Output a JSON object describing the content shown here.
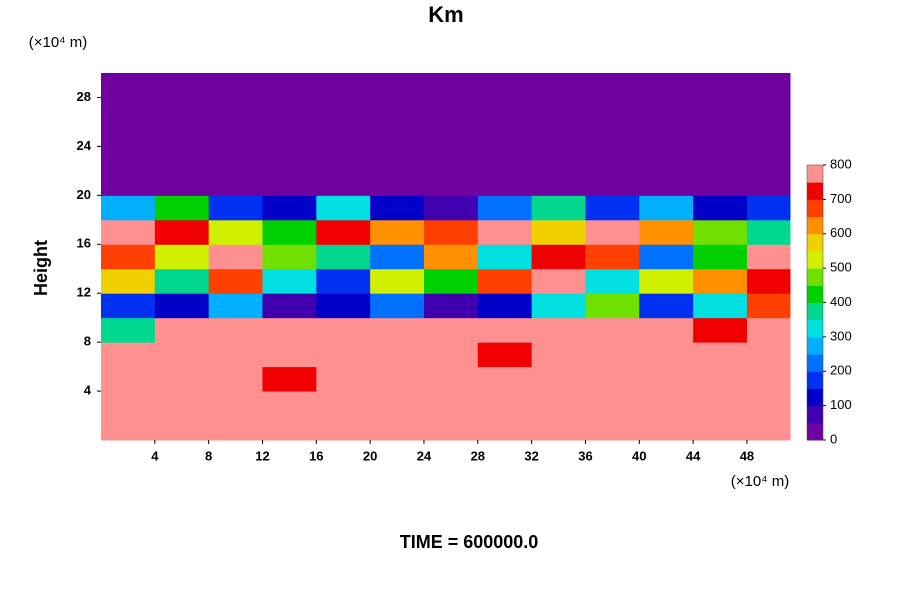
{
  "chart_data": {
    "type": "contour",
    "title": "Km",
    "y_label": "Height",
    "x_unit": "(×10⁴ m)",
    "y_unit": "(×10⁴ m)",
    "footer": "TIME = 600000.0",
    "xlim": [
      0,
      51.2
    ],
    "ylim": [
      0,
      30
    ],
    "xticks": [
      4,
      8,
      12,
      16,
      20,
      24,
      28,
      32,
      36,
      40,
      44,
      48
    ],
    "yticks": [
      4,
      8,
      12,
      16,
      20,
      24,
      28
    ],
    "xbins": [
      0,
      4,
      8,
      12,
      16,
      20,
      24,
      28,
      32,
      36,
      40,
      44,
      48,
      51.2
    ],
    "ybins": [
      0,
      2,
      4,
      6,
      8,
      10,
      12,
      14,
      16,
      18,
      20,
      22,
      24,
      26,
      28,
      30
    ],
    "z": [
      [
        800,
        800,
        800,
        800,
        800,
        800,
        800,
        800,
        800,
        800,
        800,
        800,
        800
      ],
      [
        800,
        800,
        800,
        800,
        800,
        750,
        800,
        800,
        800,
        800,
        800,
        800,
        800
      ],
      [
        800,
        800,
        750,
        700,
        800,
        750,
        800,
        750,
        800,
        800,
        800,
        800,
        800
      ],
      [
        800,
        800,
        800,
        800,
        800,
        800,
        800,
        700,
        800,
        800,
        800,
        800,
        800
      ],
      [
        350,
        800,
        800,
        800,
        800,
        800,
        800,
        800,
        800,
        800,
        750,
        700,
        800
      ],
      [
        150,
        100,
        250,
        50,
        100,
        200,
        50,
        100,
        300,
        450,
        150,
        300,
        650
      ],
      [
        550,
        350,
        650,
        300,
        150,
        500,
        400,
        650,
        750,
        300,
        500,
        600,
        700
      ],
      [
        650,
        500,
        750,
        450,
        350,
        200,
        600,
        300,
        700,
        650,
        200,
        400,
        750
      ],
      [
        750,
        700,
        500,
        400,
        700,
        600,
        650,
        750,
        550,
        800,
        600,
        450,
        350
      ],
      [
        250,
        400,
        150,
        100,
        300,
        100,
        50,
        200,
        350,
        150,
        250,
        100,
        150
      ],
      [
        0,
        0,
        0,
        0,
        0,
        0,
        0,
        0,
        0,
        0,
        0,
        0,
        0
      ],
      [
        0,
        0,
        0,
        0,
        0,
        0,
        0,
        0,
        0,
        0,
        0,
        0,
        0
      ],
      [
        0,
        0,
        0,
        0,
        0,
        0,
        0,
        0,
        0,
        0,
        0,
        0,
        0
      ],
      [
        0,
        0,
        0,
        0,
        0,
        0,
        0,
        0,
        0,
        0,
        0,
        0,
        0
      ],
      [
        0,
        0,
        0,
        0,
        0,
        0,
        0,
        0,
        0,
        0,
        0,
        0,
        0
      ]
    ],
    "clevels": [
      0,
      50,
      100,
      150,
      200,
      250,
      300,
      350,
      400,
      450,
      500,
      550,
      600,
      650,
      700,
      750,
      800
    ],
    "colorscale": [
      "#7000a0",
      "#4000b0",
      "#0000c8",
      "#0030f0",
      "#0070ff",
      "#00b0ff",
      "#00e0e0",
      "#00d890",
      "#00d000",
      "#70e000",
      "#d0f000",
      "#f0d000",
      "#ff9000",
      "#ff4000",
      "#f00000",
      "#ff9090"
    ],
    "colorbar_ticks": [
      0,
      100,
      200,
      300,
      400,
      500,
      600,
      700,
      800
    ]
  }
}
